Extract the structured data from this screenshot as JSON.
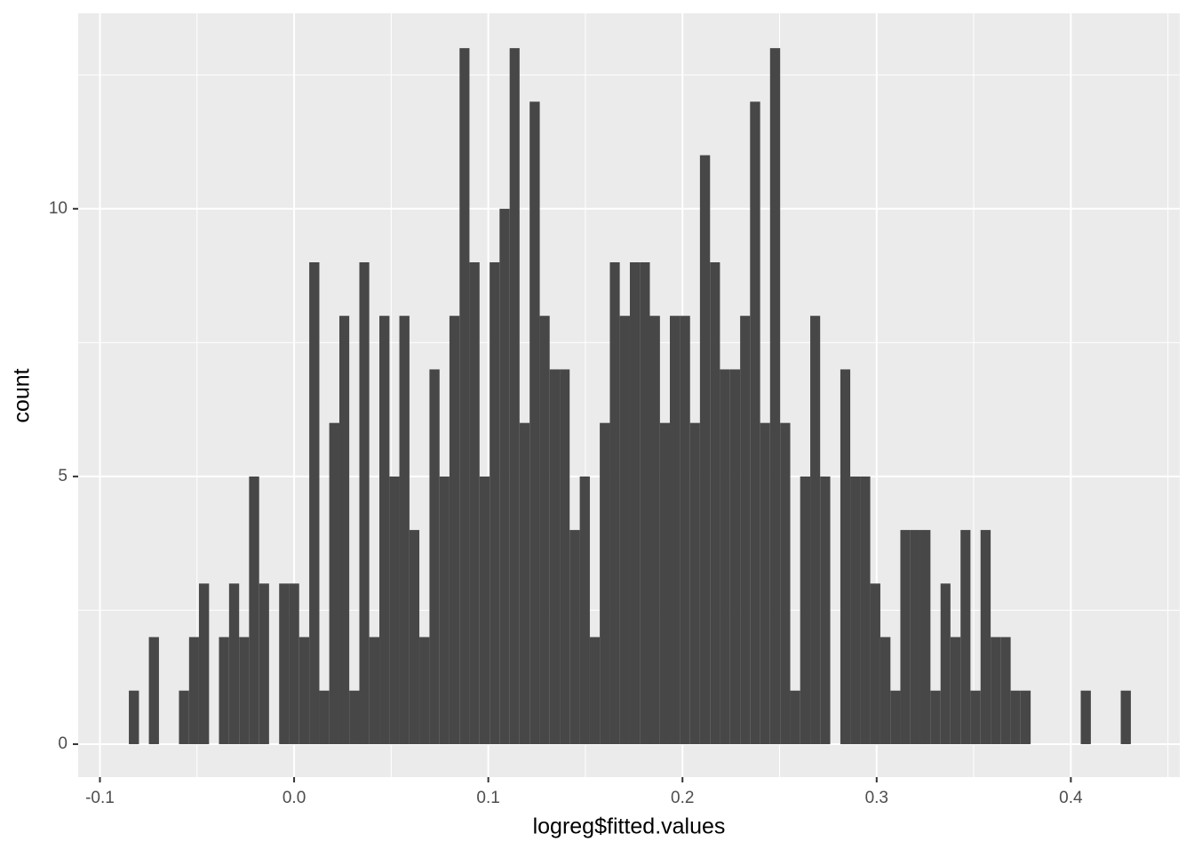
{
  "chart_data": {
    "type": "histogram",
    "x_label": "logreg$fitted.values",
    "y_label": "count",
    "color": "#474747",
    "background": "#ebebeb",
    "grid": true,
    "bins": [
      -0.0851,
      -0.0799,
      -0.0748,
      -0.0696,
      -0.0645,
      -0.0593,
      -0.0541,
      -0.049,
      -0.0438,
      -0.0387,
      -0.0335,
      -0.0283,
      -0.0232,
      -0.018,
      -0.0129,
      -0.0077,
      -0.0025,
      0.0026,
      0.0078,
      0.013,
      0.0181,
      0.0233,
      0.0284,
      0.0336,
      0.0387,
      0.0439,
      0.0491,
      0.0542,
      0.0594,
      0.0645,
      0.0697,
      0.0749,
      0.08,
      0.0852,
      0.0903,
      0.0955,
      0.1007,
      0.1058,
      0.111,
      0.1161,
      0.1213,
      0.1265,
      0.1316,
      0.1368,
      0.1419,
      0.1471,
      0.1523,
      0.1574,
      0.1626,
      0.1677,
      0.1729,
      0.1781,
      0.1832,
      0.1884,
      0.1935,
      0.1987,
      0.2039,
      0.209,
      0.2142,
      0.2193,
      0.2245,
      0.2297,
      0.2348,
      0.24,
      0.2451,
      0.2503,
      0.2555,
      0.2606,
      0.2658,
      0.2709,
      0.2761,
      0.2813,
      0.2864,
      0.2916,
      0.2967,
      0.3019,
      0.3071,
      0.3122,
      0.3174,
      0.3225,
      0.3277,
      0.3329,
      0.338,
      0.3432,
      0.3483,
      0.3535,
      0.3587,
      0.3638,
      0.369,
      0.3741,
      0.3793,
      0.3845,
      0.3896,
      0.3948,
      0.3999,
      0.4051,
      0.4103,
      0.4154,
      0.4206,
      0.4257,
      0.4309
    ],
    "values": [
      1,
      0,
      2,
      0,
      0,
      1,
      2,
      3,
      0,
      2,
      3,
      2,
      5,
      3,
      0,
      3,
      3,
      2,
      9,
      1,
      6,
      8,
      1,
      9,
      2,
      8,
      5,
      8,
      4,
      2,
      7,
      5,
      8,
      13,
      9,
      5,
      9,
      10,
      13,
      6,
      12,
      8,
      7,
      7,
      4,
      5,
      2,
      6,
      9,
      8,
      9,
      9,
      8,
      6,
      8,
      8,
      6,
      11,
      9,
      7,
      7,
      8,
      12,
      6,
      13,
      6,
      1,
      5,
      8,
      5,
      0,
      7,
      5,
      5,
      3,
      2,
      1,
      4,
      4,
      4,
      1,
      3,
      2,
      4,
      1,
      4,
      2,
      2,
      1,
      1,
      0,
      0,
      0,
      0,
      0,
      1,
      0,
      0,
      0,
      1
    ],
    "xlim": [
      -0.1112,
      0.4561
    ],
    "ylim": [
      -0.615,
      13.65
    ],
    "xticks": [
      -0.1,
      {
        "value": 0,
        "label": "0.0"
      },
      0.1,
      0.2,
      0.3,
      0.4
    ],
    "yticks": [
      0,
      5,
      10
    ],
    "x_minor_grid": [
      -0.05,
      0.05,
      0.15,
      0.25,
      0.35,
      0.45
    ],
    "y_minor_grid": [
      2.5,
      7.5,
      12.5
    ]
  }
}
